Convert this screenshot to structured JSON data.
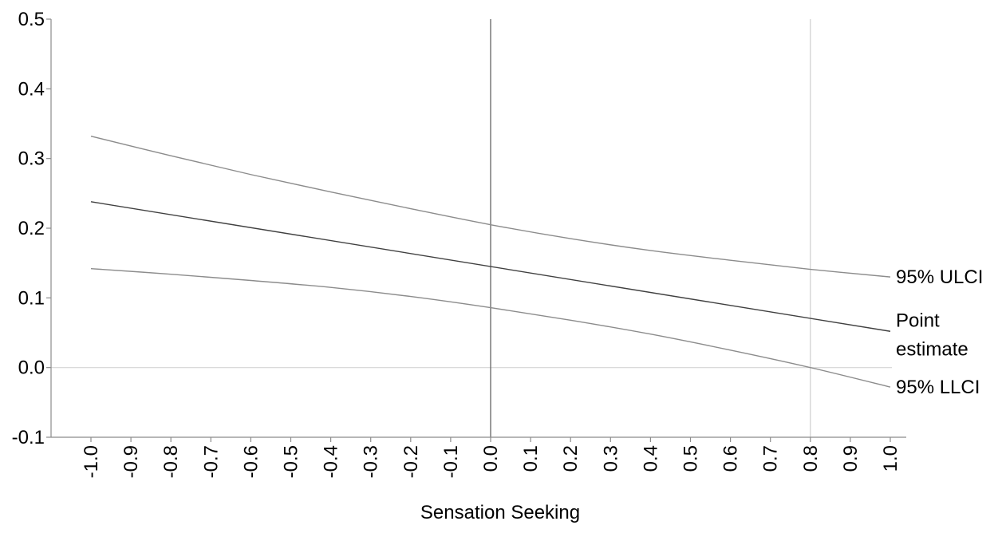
{
  "chart_data": {
    "type": "line",
    "title": "",
    "xlabel": "Sensation Seeking",
    "ylabel": "",
    "xlim": [
      -1.0,
      1.0
    ],
    "ylim": [
      -0.1,
      0.5
    ],
    "x_ticks": [
      "-1.0",
      "-0.9",
      "-0.8",
      "-0.7",
      "-0.6",
      "-0.5",
      "-0.4",
      "-0.3",
      "-0.2",
      "-0.1",
      "0.0",
      "0.1",
      "0.2",
      "0.3",
      "0.4",
      "0.5",
      "0.6",
      "0.7",
      "0.8",
      "0.9",
      "1.0"
    ],
    "y_ticks": [
      "-0.1",
      "0.0",
      "0.1",
      "0.2",
      "0.3",
      "0.4",
      "0.5"
    ],
    "x_tick_label_orientation": "vertical",
    "grid": false,
    "reference_lines": [
      {
        "orientation": "horizontal",
        "value": 0.0
      },
      {
        "orientation": "vertical",
        "value": 0.0
      },
      {
        "orientation": "vertical",
        "value": 0.8
      }
    ],
    "series": [
      {
        "name": "95% ULCI",
        "color": "#8c8c8c",
        "x": [
          -1.0,
          -0.8,
          -0.6,
          -0.4,
          -0.2,
          0.0,
          0.2,
          0.4,
          0.6,
          0.8,
          1.0
        ],
        "y": [
          0.332,
          0.304,
          0.277,
          0.252,
          0.228,
          0.205,
          0.185,
          0.168,
          0.154,
          0.141,
          0.13
        ]
      },
      {
        "name": "Point\nestimate",
        "color": "#404040",
        "x": [
          -1.0,
          1.0
        ],
        "y": [
          0.238,
          0.052
        ]
      },
      {
        "name": "95% LLCI",
        "color": "#8c8c8c",
        "x": [
          -1.0,
          -0.8,
          -0.6,
          -0.4,
          -0.2,
          0.0,
          0.2,
          0.4,
          0.6,
          0.8,
          1.0
        ],
        "y": [
          0.142,
          0.134,
          0.125,
          0.115,
          0.102,
          0.086,
          0.068,
          0.048,
          0.025,
          0.0,
          -0.028
        ]
      }
    ]
  }
}
